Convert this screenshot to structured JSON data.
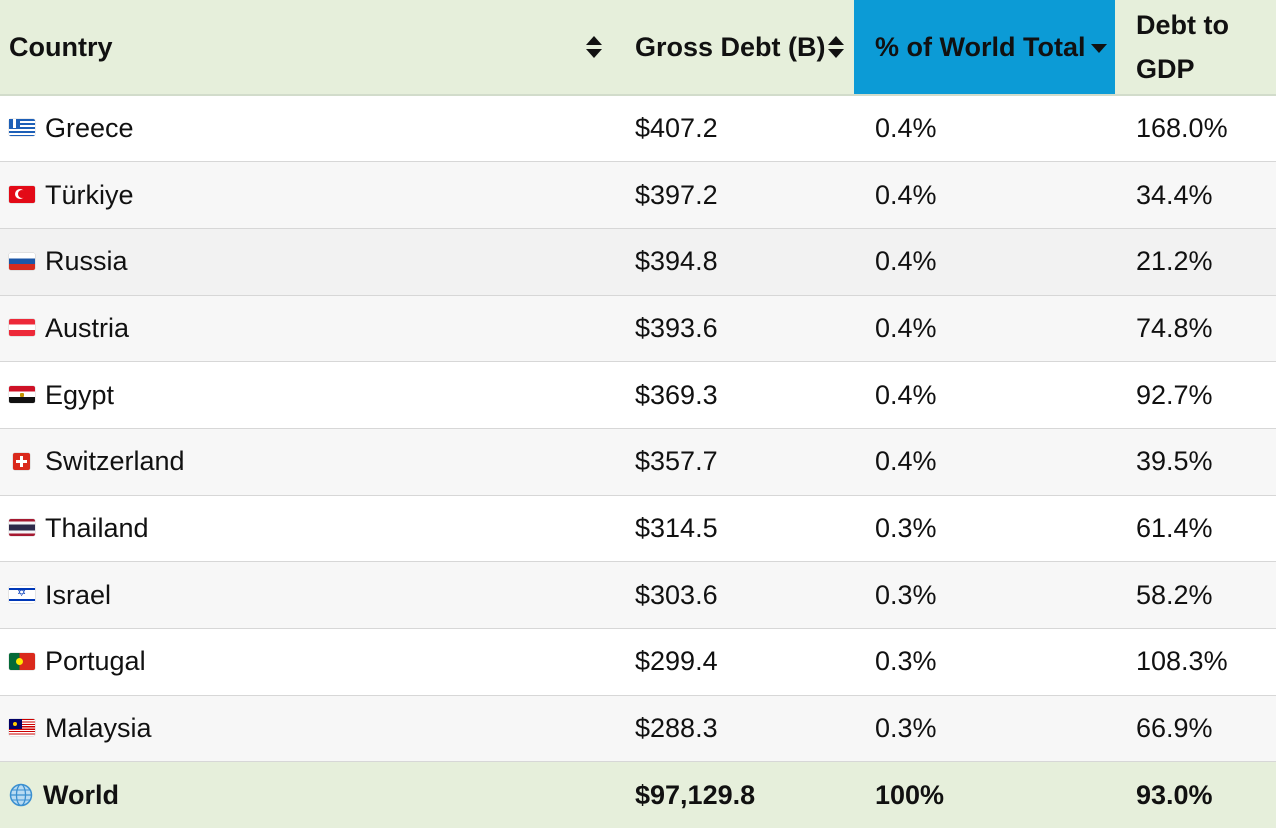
{
  "table": {
    "headers": {
      "country": "Country",
      "gross_debt": "Gross Debt (B)",
      "share": "% of World Total",
      "debt_to_gdp": "Debt to GDP"
    },
    "rows": [
      {
        "flag": "flag-greece-icon",
        "country": "Greece",
        "gross_debt": "$407.2",
        "share": "0.4%",
        "debt_to_gdp": "168.0%"
      },
      {
        "flag": "flag-turkiye-icon",
        "country": "Türkiye",
        "gross_debt": "$397.2",
        "share": "0.4%",
        "debt_to_gdp": "34.4%"
      },
      {
        "flag": "flag-russia-icon",
        "country": "Russia",
        "gross_debt": "$394.8",
        "share": "0.4%",
        "debt_to_gdp": "21.2%"
      },
      {
        "flag": "flag-austria-icon",
        "country": "Austria",
        "gross_debt": "$393.6",
        "share": "0.4%",
        "debt_to_gdp": "74.8%"
      },
      {
        "flag": "flag-egypt-icon",
        "country": "Egypt",
        "gross_debt": "$369.3",
        "share": "0.4%",
        "debt_to_gdp": "92.7%"
      },
      {
        "flag": "flag-switzerland-icon",
        "country": "Switzerland",
        "gross_debt": "$357.7",
        "share": "0.4%",
        "debt_to_gdp": "39.5%"
      },
      {
        "flag": "flag-thailand-icon",
        "country": "Thailand",
        "gross_debt": "$314.5",
        "share": "0.3%",
        "debt_to_gdp": "61.4%"
      },
      {
        "flag": "flag-israel-icon",
        "country": "Israel",
        "gross_debt": "$303.6",
        "share": "0.3%",
        "debt_to_gdp": "58.2%"
      },
      {
        "flag": "flag-portugal-icon",
        "country": "Portugal",
        "gross_debt": "$299.4",
        "share": "0.3%",
        "debt_to_gdp": "108.3%"
      },
      {
        "flag": "flag-malaysia-icon",
        "country": "Malaysia",
        "gross_debt": "$288.3",
        "share": "0.3%",
        "debt_to_gdp": "66.9%"
      }
    ],
    "total": {
      "icon": "globe-icon",
      "country": "World",
      "gross_debt": "$97,129.8",
      "share": "100%",
      "debt_to_gdp": "93.0%"
    },
    "sorted_column": "share",
    "sort_direction": "descending",
    "colors": {
      "header_bg": "#e6efdb",
      "active_sort_bg": "#0c9bd6",
      "row_alt_bg": "#f7f7f7",
      "footer_bg": "#e6efdb"
    }
  }
}
